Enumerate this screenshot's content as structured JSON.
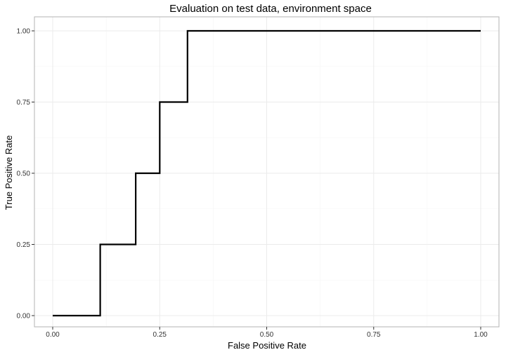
{
  "chart_data": {
    "type": "line",
    "title": "Evaluation on test data, environment space",
    "xlabel": "False Positive Rate",
    "ylabel": "True Positive Rate",
    "xlim": [
      0,
      1
    ],
    "ylim": [
      0,
      1
    ],
    "x_ticks": [
      0,
      0.25,
      0.5,
      0.75,
      1
    ],
    "x_tick_labels": [
      "0.00",
      "0.25",
      "0.50",
      "0.75",
      "1.00"
    ],
    "y_ticks": [
      0,
      0.25,
      0.5,
      0.75,
      1
    ],
    "y_tick_labels": [
      "0.00",
      "0.25",
      "0.50",
      "0.75",
      "1.00"
    ],
    "grid": true,
    "line_style": "step",
    "series": [
      {
        "color": "#000000",
        "x": [
          0,
          0.111,
          0.111,
          0.194,
          0.194,
          0.25,
          0.25,
          0.315,
          0.315,
          1.0
        ],
        "y": [
          0,
          0,
          0.25,
          0.25,
          0.5,
          0.5,
          0.75,
          0.75,
          1.0,
          1.0
        ]
      }
    ],
    "colors": {
      "grid_major": "#ebebeb",
      "grid_minor": "#f5f5f5",
      "panel_border": "#b3b3b3",
      "tick": "#333333"
    }
  }
}
